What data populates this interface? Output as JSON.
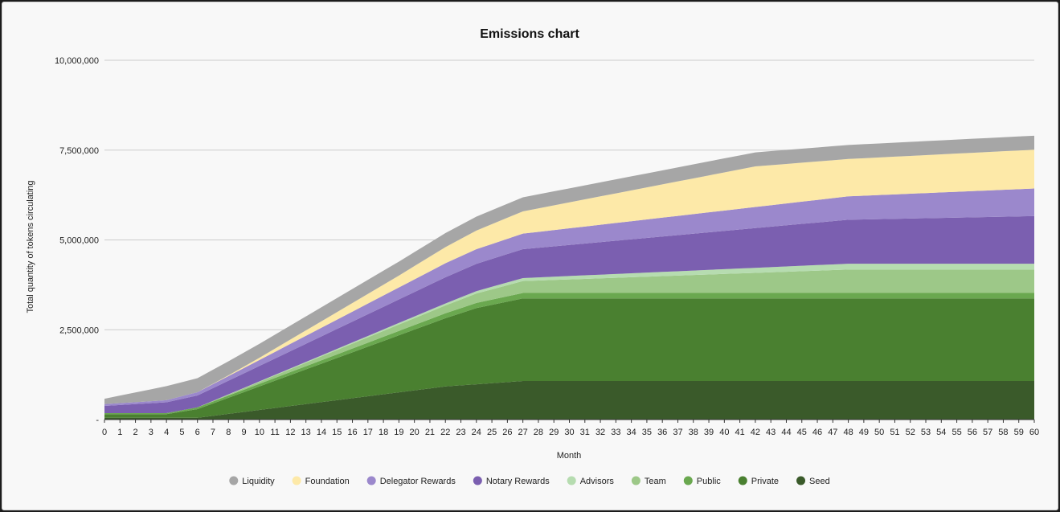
{
  "chart_data": {
    "type": "area",
    "stacked": true,
    "title": "Emissions chart",
    "xlabel": "Month",
    "ylabel": "Total quantity of tokens circulating",
    "ylim": [
      0,
      10000000
    ],
    "yticks": [
      0,
      2500000,
      5000000,
      7500000,
      10000000
    ],
    "ytick_labels": [
      "-",
      "2,500,000",
      "5,000,000",
      "7,500,000",
      "10,000,000"
    ],
    "x": [
      0,
      1,
      2,
      3,
      4,
      5,
      6,
      7,
      8,
      9,
      10,
      11,
      12,
      13,
      14,
      15,
      16,
      17,
      18,
      19,
      20,
      21,
      22,
      23,
      24,
      25,
      26,
      27,
      28,
      29,
      30,
      31,
      32,
      33,
      34,
      35,
      36,
      37,
      38,
      39,
      40,
      41,
      42,
      43,
      44,
      45,
      46,
      47,
      48,
      49,
      50,
      51,
      52,
      53,
      54,
      55,
      56,
      57,
      58,
      59,
      60
    ],
    "legend_position": "bottom",
    "series": [
      {
        "name": "Seed",
        "color": "#3a5a2a",
        "values": [
          50000,
          50000,
          50000,
          50000,
          50000,
          50000,
          50000,
          104545,
          159091,
          213636,
          268182,
          322727,
          377273,
          431818,
          486364,
          540909,
          595455,
          650000,
          704545,
          759091,
          813636,
          868182,
          922727,
          952727,
          982727,
          1012727,
          1042727,
          1072727,
          1072727,
          1072727,
          1072727,
          1072727,
          1072727,
          1072727,
          1072727,
          1072727,
          1072727,
          1072727,
          1072727,
          1072727,
          1072727,
          1072727,
          1072727,
          1072727,
          1072727,
          1072727,
          1072727,
          1072727,
          1072727,
          1072727,
          1072727,
          1072727,
          1072727,
          1072727,
          1072727,
          1072727,
          1072727,
          1072727,
          1072727,
          1072727,
          1072727
        ]
      },
      {
        "name": "Private",
        "color": "#4a8030",
        "values": [
          100000,
          100000,
          100000,
          100000,
          100000,
          170000,
          240000,
          343636,
          447273,
          550909,
          654545,
          758182,
          861818,
          965455,
          1069091,
          1172727,
          1276364,
          1380000,
          1483636,
          1587273,
          1690909,
          1794545,
          1898182,
          2009091,
          2120000,
          2180000,
          2240000,
          2300000,
          2300000,
          2300000,
          2300000,
          2300000,
          2300000,
          2300000,
          2300000,
          2300000,
          2300000,
          2300000,
          2300000,
          2300000,
          2300000,
          2300000,
          2300000,
          2300000,
          2300000,
          2300000,
          2300000,
          2300000,
          2300000,
          2300000,
          2300000,
          2300000,
          2300000,
          2300000,
          2300000,
          2300000,
          2300000,
          2300000,
          2300000,
          2300000,
          2300000
        ]
      },
      {
        "name": "Public",
        "color": "#6aa84f",
        "values": [
          30000,
          30000,
          30000,
          30000,
          30000,
          40000,
          50000,
          55455,
          60909,
          66364,
          71818,
          77273,
          82727,
          88182,
          93636,
          99091,
          104545,
          110000,
          115455,
          120909,
          126364,
          131818,
          137273,
          140000,
          142727,
          145455,
          148182,
          150909,
          150909,
          150909,
          150909,
          150909,
          150909,
          150909,
          150909,
          150909,
          150909,
          150909,
          150909,
          150909,
          150909,
          150909,
          150909,
          150909,
          150909,
          150909,
          150909,
          150909,
          150909,
          150909,
          150909,
          150909,
          150909,
          150909,
          150909,
          150909,
          150909,
          150909,
          150909,
          150909,
          150909
        ]
      },
      {
        "name": "Team",
        "color": "#9dc888",
        "values": [
          0,
          0,
          0,
          0,
          0,
          0,
          0,
          13636,
          27273,
          40909,
          54545,
          68182,
          81818,
          95455,
          109091,
          122727,
          136364,
          150000,
          163636,
          177273,
          190909,
          204545,
          218182,
          240909,
          263636,
          286364,
          309091,
          331818,
          347037,
          362263,
          377489,
          392715,
          407941,
          423167,
          438393,
          453619,
          468845,
          484071,
          499297,
          514523,
          529749,
          544975,
          560201,
          575427,
          590653,
          605879,
          621105,
          636331,
          651557,
          651557,
          651557,
          651557,
          651557,
          651557,
          651557,
          651557,
          651557,
          651557,
          651557,
          651557,
          651557
        ]
      },
      {
        "name": "Advisors",
        "color": "#b6dcb0",
        "values": [
          0,
          0,
          0,
          0,
          0,
          0,
          0,
          3409,
          6818,
          10227,
          13636,
          17045,
          20455,
          23864,
          27273,
          30682,
          34091,
          37500,
          40909,
          44318,
          47727,
          51136,
          54545,
          60227,
          65909,
          71591,
          77273,
          82955,
          86762,
          90569,
          94375,
          98182,
          101989,
          105795,
          109602,
          113409,
          117216,
          121023,
          124829,
          128636,
          132443,
          136250,
          140057,
          143864,
          147670,
          151477,
          155284,
          159091,
          162898,
          162898,
          162898,
          162898,
          162898,
          162898,
          162898,
          162898,
          162898,
          162898,
          162898,
          162898,
          162898
        ]
      },
      {
        "name": "Notary Rewards",
        "color": "#7b5fb0",
        "values": [
          200000,
          225000,
          250000,
          275000,
          300000,
          315000,
          330000,
          355000,
          380000,
          405000,
          430000,
          455000,
          480000,
          505000,
          530000,
          555000,
          580000,
          605000,
          630000,
          655000,
          680000,
          705000,
          730000,
          745000,
          760000,
          775000,
          790000,
          805000,
          825000,
          845000,
          865000,
          885000,
          905000,
          925000,
          945000,
          965000,
          985000,
          1005000,
          1025000,
          1045000,
          1065000,
          1085000,
          1105000,
          1125000,
          1145000,
          1165000,
          1185000,
          1205000,
          1225000,
          1233333,
          1241667,
          1250000,
          1258333,
          1266667,
          1275000,
          1283333,
          1291667,
          1300000,
          1308333,
          1316667,
          1325000
        ]
      },
      {
        "name": "Delegator Rewards",
        "color": "#9b88cc",
        "values": [
          50000,
          52500,
          55000,
          57500,
          60000,
          76000,
          92000,
          110571,
          129143,
          147714,
          166286,
          184857,
          203429,
          222000,
          240571,
          259143,
          277714,
          296286,
          314857,
          333429,
          352000,
          370571,
          389143,
          397714,
          406286,
          414857,
          423429,
          432000,
          442370,
          452741,
          463111,
          473481,
          483852,
          494222,
          504593,
          514963,
          525333,
          535704,
          546074,
          556444,
          566815,
          577185,
          587556,
          597926,
          608296,
          618667,
          629037,
          639407,
          649778,
          659630,
          669481,
          679333,
          689185,
          699037,
          708889,
          718741,
          728593,
          738444,
          748296,
          758148,
          768000
        ]
      },
      {
        "name": "Foundation",
        "color": "#fde9a8",
        "values": [
          0,
          0,
          0,
          0,
          0,
          0,
          0,
          10000,
          20000,
          40000,
          60000,
          90000,
          120000,
          150000,
          180000,
          210000,
          240000,
          270000,
          300000,
          330000,
          370000,
          410000,
          450000,
          484000,
          518000,
          552000,
          586000,
          620000,
          654000,
          688000,
          722000,
          756000,
          790000,
          824000,
          858000,
          892000,
          926000,
          960000,
          994000,
          1028000,
          1062000,
          1096000,
          1130000,
          1115000,
          1100000,
          1085000,
          1070000,
          1055000,
          1040000,
          1043333,
          1046667,
          1050000,
          1053333,
          1056667,
          1060000,
          1063333,
          1066667,
          1070000,
          1073333,
          1076667,
          1080000
        ]
      },
      {
        "name": "Liquidity",
        "color": "#a6a6a6",
        "values": [
          150000,
          210000,
          270000,
          330000,
          390000,
          390000,
          390000,
          390000,
          390000,
          390000,
          390000,
          390000,
          390000,
          390000,
          390000,
          390000,
          390000,
          390000,
          390000,
          390000,
          390000,
          390000,
          390000,
          390000,
          390000,
          390000,
          390000,
          390000,
          390000,
          390000,
          390000,
          390000,
          390000,
          390000,
          390000,
          390000,
          390000,
          390000,
          390000,
          390000,
          390000,
          390000,
          390000,
          390000,
          390000,
          390000,
          390000,
          390000,
          390000,
          390000,
          390000,
          390000,
          390000,
          390000,
          390000,
          390000,
          390000,
          390000,
          390000,
          390000,
          390000
        ]
      }
    ],
    "legend_order": [
      "Liquidity",
      "Foundation",
      "Delegator Rewards",
      "Notary Rewards",
      "Advisors",
      "Team",
      "Public",
      "Private",
      "Seed"
    ]
  }
}
